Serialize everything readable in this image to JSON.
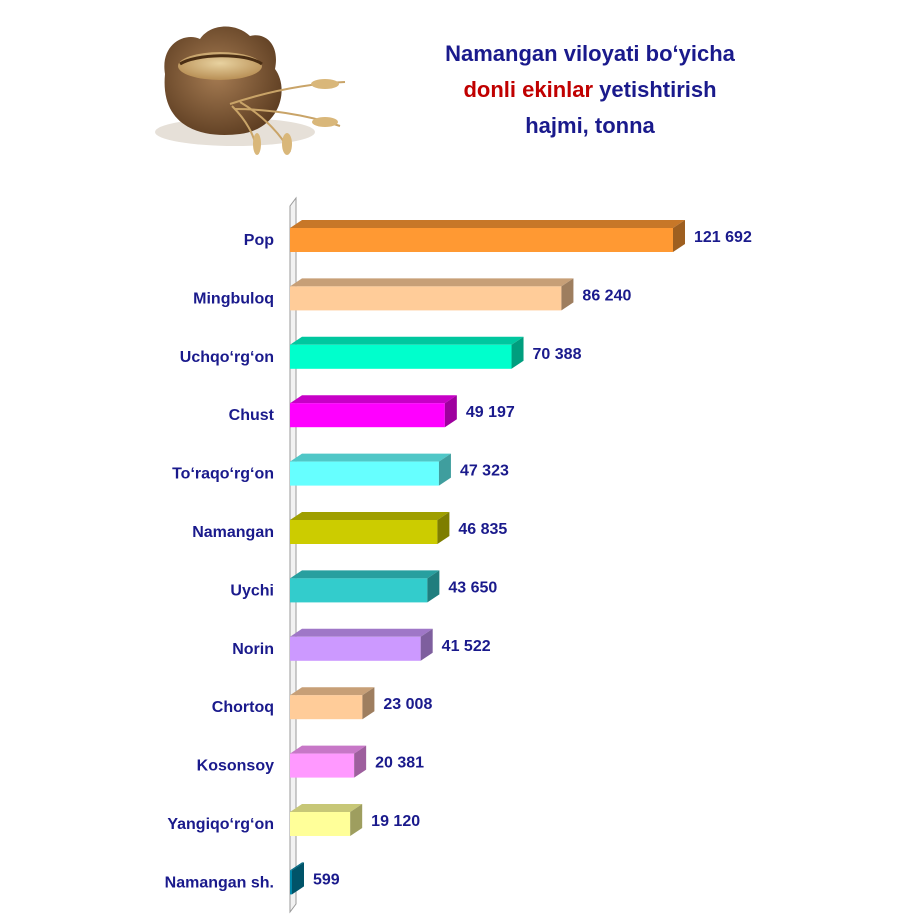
{
  "title": {
    "line1": "Namangan viloyati bo‘yicha",
    "line2_highlight": "donli ekinlar",
    "line2_rest": "yetishtirish",
    "line3": "hajmi, tonna"
  },
  "colors": {
    "title": "#1a1a8c",
    "title_highlight": "#c00000",
    "labels": "#1a1a8c"
  },
  "chart_data": {
    "type": "bar",
    "orientation": "horizontal",
    "categories": [
      "Pop",
      "Mingbuloq",
      "Uchqo‘rg‘on",
      "Chust",
      "To‘raqo‘rg‘on",
      "Namangan",
      "Uychi",
      "Norin",
      "Chortoq",
      "Kosonsoy",
      "Yangiqo‘rg‘on",
      "Namangan sh."
    ],
    "values": [
      121692,
      86240,
      70388,
      49197,
      47323,
      46835,
      43650,
      41522,
      23008,
      20381,
      19120,
      599
    ],
    "value_labels": [
      "121 692",
      "86 240",
      "70 388",
      "49 197",
      "47 323",
      "46 835",
      "43 650",
      "41 522",
      "23 008",
      "20 381",
      "19 120",
      "599"
    ],
    "bar_colors": [
      "#ff9933",
      "#ffcc99",
      "#00ffcc",
      "#ff00ff",
      "#66ffff",
      "#cccc00",
      "#33cccc",
      "#cc99ff",
      "#ffcc99",
      "#ff99ff",
      "#ffff99",
      "#0088aa"
    ],
    "grid": false,
    "bars_3d": true
  }
}
